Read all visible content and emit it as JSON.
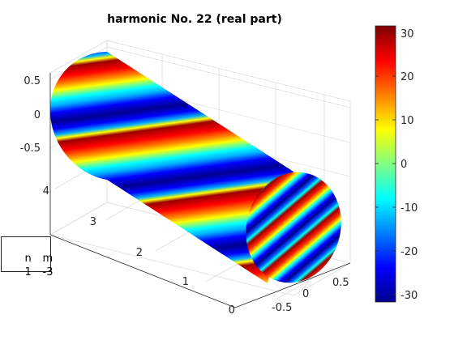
{
  "chart_data": {
    "type": "surface",
    "title": "harmonic No. 22 (real part)",
    "surface": "cylinder",
    "colormap": "jet",
    "harmonic": {
      "n": 1,
      "m": -3
    },
    "x_axis": {
      "ticks": [
        "-0.5",
        "0",
        "0.5"
      ],
      "range": [
        -0.5,
        0.5
      ]
    },
    "y_axis": {
      "ticks": [
        "0",
        "1",
        "2",
        "3",
        "4"
      ],
      "range": [
        0,
        4
      ]
    },
    "z_axis": {
      "ticks": [
        "0.5",
        "0",
        "-0.5"
      ],
      "range": [
        -0.5,
        0.5
      ]
    },
    "colorbar": {
      "ticks": [
        "30",
        "20",
        "10",
        "0",
        "-10",
        "-20",
        "-30"
      ],
      "range": [
        -32,
        32
      ]
    },
    "grid": true
  },
  "info_box": {
    "header_n": "n",
    "header_m": "m",
    "value_n": "1",
    "value_m": "-3"
  }
}
